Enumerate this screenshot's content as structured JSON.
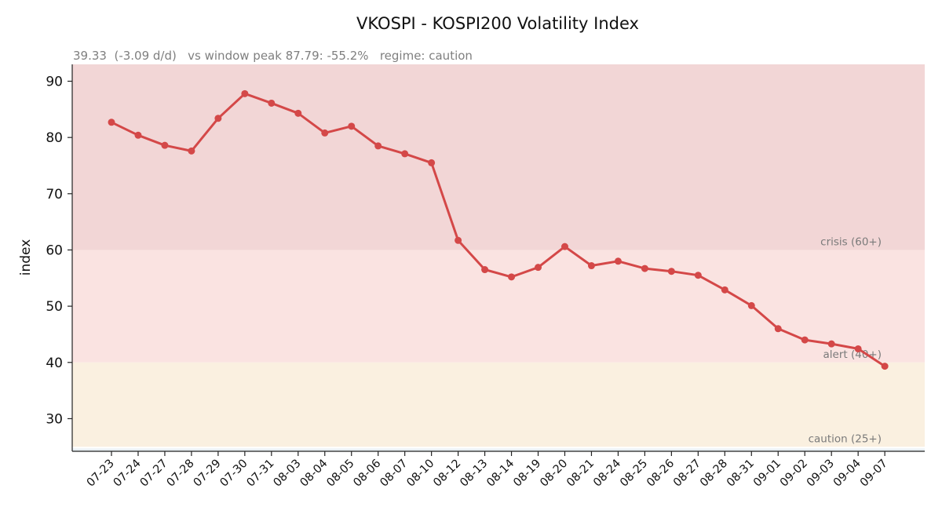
{
  "chart_data": {
    "type": "line",
    "title": "VKOSPI - KOSPI200 Volatility Index",
    "subtitle": "39.33  (-3.09 d/d)   vs window peak 87.79: -55.2%   regime: caution",
    "ylabel": "index",
    "xlabel": "",
    "ylim": [
      24.2,
      93.0
    ],
    "yticks": [
      30,
      40,
      50,
      60,
      70,
      80,
      90
    ],
    "grid": false,
    "categories": [
      "07-23",
      "07-24",
      "07-27",
      "07-28",
      "07-29",
      "07-30",
      "07-31",
      "08-03",
      "08-04",
      "08-05",
      "08-06",
      "08-07",
      "08-10",
      "08-12",
      "08-13",
      "08-14",
      "08-19",
      "08-20",
      "08-21",
      "08-24",
      "08-25",
      "08-26",
      "08-27",
      "08-28",
      "08-31",
      "09-01",
      "09-02",
      "09-03",
      "09-04",
      "09-07"
    ],
    "series": [
      {
        "values": [
          82.7,
          80.4,
          78.6,
          77.6,
          83.4,
          87.79,
          86.1,
          84.3,
          80.8,
          82.0,
          78.5,
          77.1,
          75.5,
          61.7,
          56.5,
          55.2,
          56.9,
          60.6,
          57.2,
          58.0,
          56.7,
          56.2,
          55.5,
          52.9,
          50.1,
          46.0,
          44.0,
          43.3,
          42.42,
          39.33
        ],
        "color": "#d44848"
      }
    ],
    "bands": [
      {
        "from": 60,
        "to": 93,
        "label": "crisis (60+)",
        "color": "#f2d6d6"
      },
      {
        "from": 40,
        "to": 60,
        "label": "alert (40+)",
        "color": "#fae3e1"
      },
      {
        "from": 25,
        "to": 40,
        "label": "caution (25+)",
        "color": "#faf0e0"
      }
    ]
  }
}
